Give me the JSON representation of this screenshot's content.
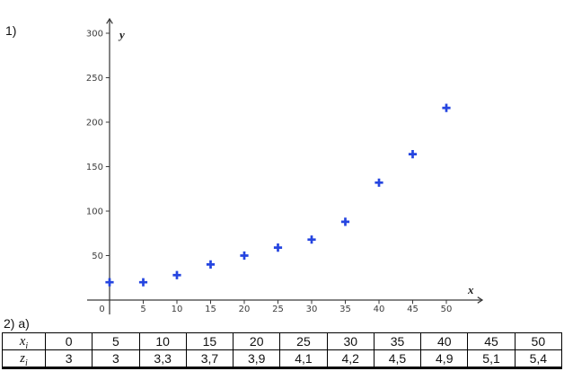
{
  "exercises": {
    "item1_label": "1)",
    "item2_label": "2) a)"
  },
  "chart_data": [
    {
      "type": "scatter",
      "title": "",
      "xlabel": "x",
      "ylabel": "y",
      "x": [
        0,
        5,
        10,
        15,
        20,
        25,
        30,
        35,
        40,
        45,
        50
      ],
      "y": [
        20,
        20,
        28,
        40,
        50,
        59,
        68,
        88,
        132,
        164,
        216
      ],
      "x_ticks": [
        0,
        5,
        10,
        15,
        20,
        25,
        30,
        35,
        40,
        45,
        50
      ],
      "y_ticks": [
        50,
        100,
        150,
        200,
        250,
        300
      ],
      "xlim": [
        0,
        55
      ],
      "ylim": [
        0,
        310
      ],
      "grid": false,
      "legend": "none",
      "marker": "plus",
      "marker_color": "#2545e0",
      "axis_color": "#3a3a3a"
    },
    {
      "type": "table",
      "rows": [
        {
          "header_base": "x",
          "header_sub": "i",
          "values": [
            "0",
            "5",
            "10",
            "15",
            "20",
            "25",
            "30",
            "35",
            "40",
            "45",
            "50"
          ]
        },
        {
          "header_base": "z",
          "header_sub": "i",
          "values": [
            "3",
            "3",
            "3,3",
            "3,7",
            "3,9",
            "4,1",
            "4,2",
            "4,5",
            "4,9",
            "5,1",
            "5,4"
          ]
        }
      ]
    }
  ]
}
